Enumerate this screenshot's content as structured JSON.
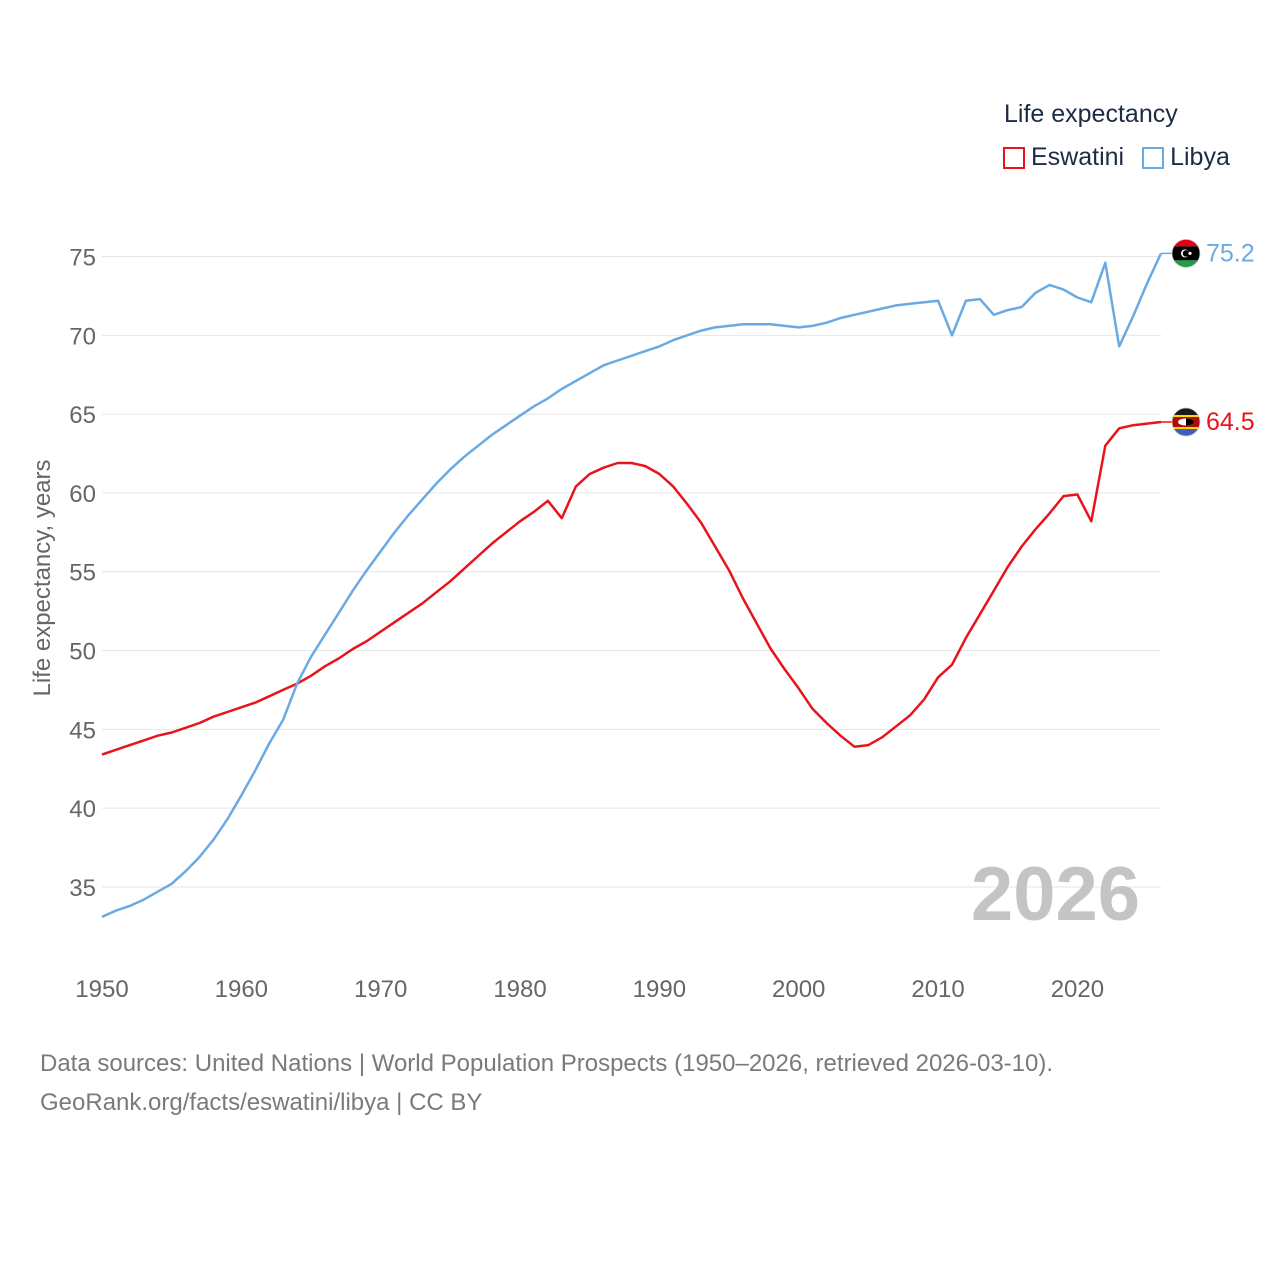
{
  "legend": {
    "title": "Life expectancy",
    "items": [
      {
        "label": "Eswatini",
        "color": "#e8141c"
      },
      {
        "label": "Libya",
        "color": "#6aaae4"
      }
    ]
  },
  "footer": {
    "line1": "Data sources: United Nations | World Population Prospects (1950–2026, retrieved 2026-03-10).",
    "line2": "GeoRank.org/facts/eswatini/libya | CC BY"
  },
  "chart_data": {
    "type": "line",
    "ylabel": "Life expectancy, years",
    "year_label": "2026",
    "xlim": [
      1950,
      2026
    ],
    "ylim": [
      31,
      77
    ],
    "x_ticks": [
      1950,
      1960,
      1970,
      1980,
      1990,
      2000,
      2010,
      2020
    ],
    "y_ticks": [
      35,
      40,
      45,
      50,
      55,
      60,
      65,
      70,
      75
    ],
    "series": [
      {
        "name": "Eswatini",
        "color": "#e8141c",
        "end_label": "64.5",
        "flag": "eswatini",
        "points": [
          [
            1950,
            43.4
          ],
          [
            1951,
            43.7
          ],
          [
            1952,
            44.0
          ],
          [
            1953,
            44.3
          ],
          [
            1954,
            44.6
          ],
          [
            1955,
            44.8
          ],
          [
            1956,
            45.1
          ],
          [
            1957,
            45.4
          ],
          [
            1958,
            45.8
          ],
          [
            1959,
            46.1
          ],
          [
            1960,
            46.4
          ],
          [
            1961,
            46.7
          ],
          [
            1962,
            47.1
          ],
          [
            1963,
            47.5
          ],
          [
            1964,
            47.9
          ],
          [
            1965,
            48.4
          ],
          [
            1966,
            49.0
          ],
          [
            1967,
            49.5
          ],
          [
            1968,
            50.1
          ],
          [
            1969,
            50.6
          ],
          [
            1970,
            51.2
          ],
          [
            1971,
            51.8
          ],
          [
            1972,
            52.4
          ],
          [
            1973,
            53.0
          ],
          [
            1974,
            53.7
          ],
          [
            1975,
            54.4
          ],
          [
            1976,
            55.2
          ],
          [
            1977,
            56.0
          ],
          [
            1978,
            56.8
          ],
          [
            1979,
            57.5
          ],
          [
            1980,
            58.2
          ],
          [
            1981,
            58.8
          ],
          [
            1982,
            59.5
          ],
          [
            1983,
            58.4
          ],
          [
            1984,
            60.4
          ],
          [
            1985,
            61.2
          ],
          [
            1986,
            61.6
          ],
          [
            1987,
            61.9
          ],
          [
            1988,
            61.9
          ],
          [
            1989,
            61.7
          ],
          [
            1990,
            61.2
          ],
          [
            1991,
            60.4
          ],
          [
            1992,
            59.3
          ],
          [
            1993,
            58.1
          ],
          [
            1994,
            56.6
          ],
          [
            1995,
            55.1
          ],
          [
            1996,
            53.3
          ],
          [
            1997,
            51.7
          ],
          [
            1998,
            50.1
          ],
          [
            1999,
            48.8
          ],
          [
            2000,
            47.6
          ],
          [
            2001,
            46.3
          ],
          [
            2002,
            45.4
          ],
          [
            2003,
            44.6
          ],
          [
            2004,
            43.9
          ],
          [
            2005,
            44.0
          ],
          [
            2006,
            44.5
          ],
          [
            2007,
            45.2
          ],
          [
            2008,
            45.9
          ],
          [
            2009,
            46.9
          ],
          [
            2010,
            48.3
          ],
          [
            2011,
            49.1
          ],
          [
            2012,
            50.8
          ],
          [
            2013,
            52.3
          ],
          [
            2014,
            53.8
          ],
          [
            2015,
            55.3
          ],
          [
            2016,
            56.6
          ],
          [
            2017,
            57.7
          ],
          [
            2018,
            58.7
          ],
          [
            2019,
            59.8
          ],
          [
            2020,
            59.9
          ],
          [
            2021,
            58.2
          ],
          [
            2022,
            63.0
          ],
          [
            2023,
            64.1
          ],
          [
            2024,
            64.3
          ],
          [
            2025,
            64.4
          ],
          [
            2026,
            64.5
          ]
        ]
      },
      {
        "name": "Libya",
        "color": "#6aaae4",
        "end_label": "75.2",
        "flag": "libya",
        "points": [
          [
            1950,
            33.1
          ],
          [
            1951,
            33.5
          ],
          [
            1952,
            33.8
          ],
          [
            1953,
            34.2
          ],
          [
            1954,
            34.7
          ],
          [
            1955,
            35.2
          ],
          [
            1956,
            36.0
          ],
          [
            1957,
            36.9
          ],
          [
            1958,
            38.0
          ],
          [
            1959,
            39.3
          ],
          [
            1960,
            40.8
          ],
          [
            1961,
            42.4
          ],
          [
            1962,
            44.1
          ],
          [
            1963,
            45.6
          ],
          [
            1964,
            47.9
          ],
          [
            1965,
            49.6
          ],
          [
            1966,
            51.0
          ],
          [
            1967,
            52.4
          ],
          [
            1968,
            53.8
          ],
          [
            1969,
            55.1
          ],
          [
            1970,
            56.3
          ],
          [
            1971,
            57.5
          ],
          [
            1972,
            58.6
          ],
          [
            1973,
            59.6
          ],
          [
            1974,
            60.6
          ],
          [
            1975,
            61.5
          ],
          [
            1976,
            62.3
          ],
          [
            1977,
            63.0
          ],
          [
            1978,
            63.7
          ],
          [
            1979,
            64.3
          ],
          [
            1980,
            64.9
          ],
          [
            1981,
            65.5
          ],
          [
            1982,
            66.0
          ],
          [
            1983,
            66.6
          ],
          [
            1984,
            67.1
          ],
          [
            1985,
            67.6
          ],
          [
            1986,
            68.1
          ],
          [
            1987,
            68.4
          ],
          [
            1988,
            68.7
          ],
          [
            1989,
            69.0
          ],
          [
            1990,
            69.3
          ],
          [
            1991,
            69.7
          ],
          [
            1992,
            70.0
          ],
          [
            1993,
            70.3
          ],
          [
            1994,
            70.5
          ],
          [
            1995,
            70.6
          ],
          [
            1996,
            70.7
          ],
          [
            1997,
            70.7
          ],
          [
            1998,
            70.7
          ],
          [
            1999,
            70.6
          ],
          [
            2000,
            70.5
          ],
          [
            2001,
            70.6
          ],
          [
            2002,
            70.8
          ],
          [
            2003,
            71.1
          ],
          [
            2004,
            71.3
          ],
          [
            2005,
            71.5
          ],
          [
            2006,
            71.7
          ],
          [
            2007,
            71.9
          ],
          [
            2008,
            72.0
          ],
          [
            2009,
            72.1
          ],
          [
            2010,
            72.2
          ],
          [
            2011,
            70.0
          ],
          [
            2012,
            72.2
          ],
          [
            2013,
            72.3
          ],
          [
            2014,
            71.3
          ],
          [
            2015,
            71.6
          ],
          [
            2016,
            71.8
          ],
          [
            2017,
            72.7
          ],
          [
            2018,
            73.2
          ],
          [
            2019,
            72.9
          ],
          [
            2020,
            72.4
          ],
          [
            2021,
            72.1
          ],
          [
            2022,
            74.6
          ],
          [
            2023,
            69.3
          ],
          [
            2024,
            71.2
          ],
          [
            2025,
            73.3
          ],
          [
            2026,
            75.2
          ]
        ]
      }
    ]
  }
}
